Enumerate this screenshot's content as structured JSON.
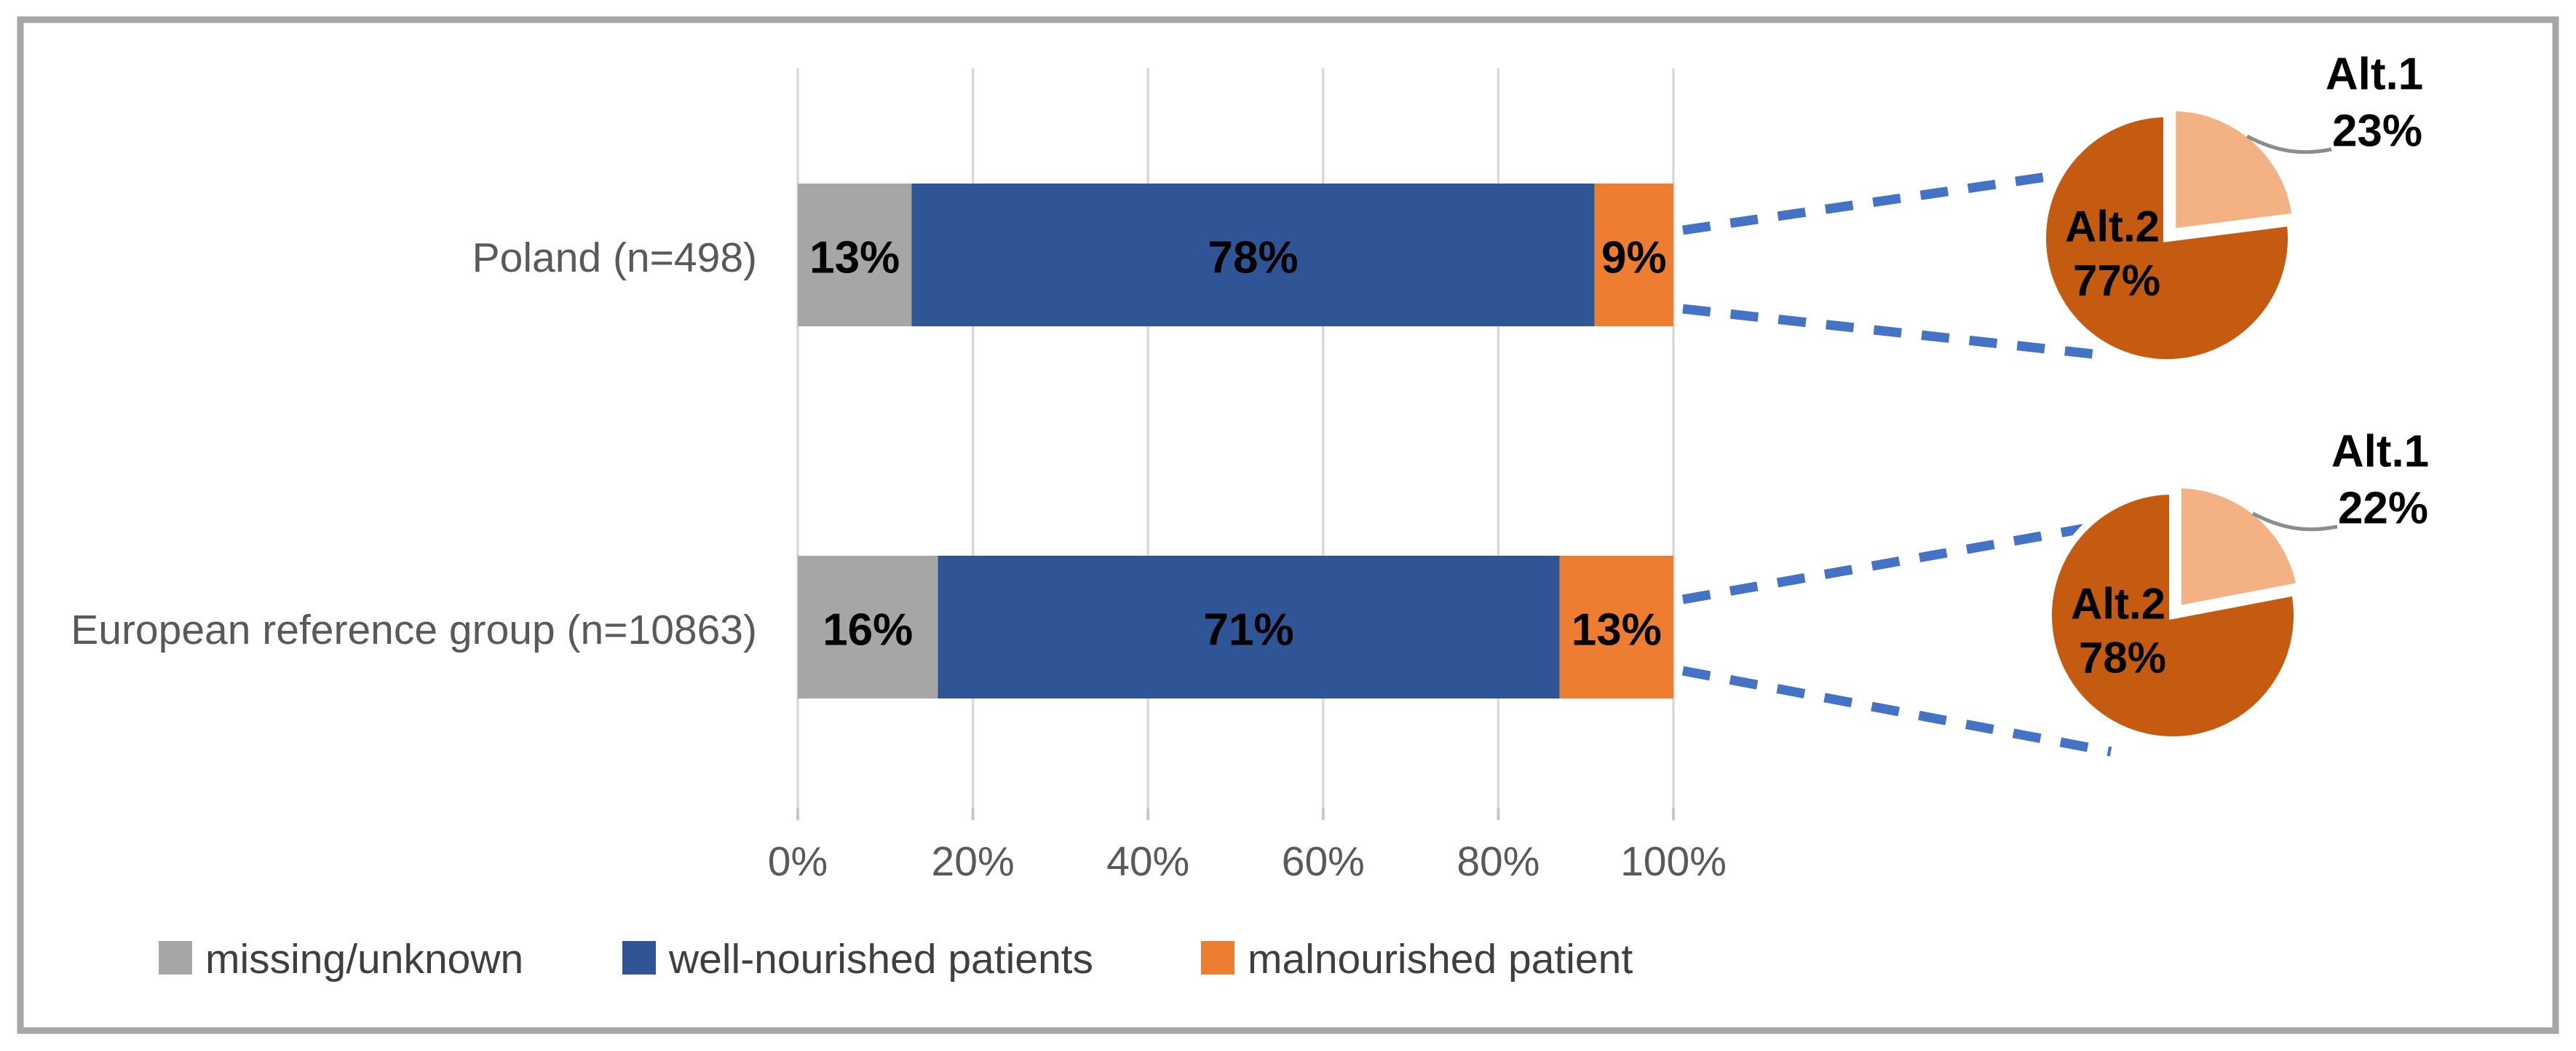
{
  "chart_data": {
    "type": "bar",
    "subtype": "horizontal-stacked-with-pie-callouts",
    "title": "",
    "categories": [
      "Poland (n=498)",
      "European reference group (n=10863)"
    ],
    "series": [
      {
        "name": "missing/unknown",
        "color": "#a6a6a6",
        "values": [
          13,
          16
        ],
        "value_labels": [
          "13%",
          "16%"
        ]
      },
      {
        "name": "well-nourished patients",
        "color": "#2f5597",
        "values": [
          78,
          71
        ],
        "value_labels": [
          "78%",
          "71%"
        ]
      },
      {
        "name": "malnourished patient",
        "color": "#ed7d31",
        "values": [
          9,
          13
        ],
        "value_labels": [
          "9%",
          "13%"
        ]
      }
    ],
    "x_axis": {
      "range": [
        0,
        100
      ],
      "tick_labels": [
        "0%",
        "20%",
        "40%",
        "60%",
        "80%",
        "100%"
      ],
      "grid": true
    },
    "legend": {
      "position": "bottom-left",
      "entries": [
        {
          "label": "missing/unknown",
          "color": "#a6a6a6"
        },
        {
          "label": "well-nourished patients",
          "color": "#2f5597"
        },
        {
          "label": "malnourished patient",
          "color": "#ed7d31"
        }
      ]
    },
    "pies": [
      {
        "for_category": "Poland (n=498)",
        "slices": [
          {
            "label": "Alt.1",
            "value": 23,
            "value_label": "23%",
            "color": "#f4b183",
            "label_placement": "outside"
          },
          {
            "label": "Alt.2",
            "value": 77,
            "value_label": "77%",
            "color": "#c55a11",
            "label_placement": "inside"
          }
        ]
      },
      {
        "for_category": "European reference group (n=10863)",
        "slices": [
          {
            "label": "Alt.1",
            "value": 22,
            "value_label": "22%",
            "color": "#f4b183",
            "label_placement": "outside"
          },
          {
            "label": "Alt.2",
            "value": 78,
            "value_label": "78%",
            "color": "#c55a11",
            "label_placement": "inside"
          }
        ]
      }
    ],
    "styles": {
      "frame_color": "#a6a6a6",
      "gridline_color": "#d9d9d9",
      "tick_mark_color": "#c6c6c6",
      "callout_dash_color": "#4472c4",
      "leader_line_color": "#8c8c8c",
      "axis_text_color": "#595959",
      "legend_text_color": "#3f3f3f",
      "data_label_color": "#000000",
      "slice_separator_color": "#ffffff"
    }
  }
}
